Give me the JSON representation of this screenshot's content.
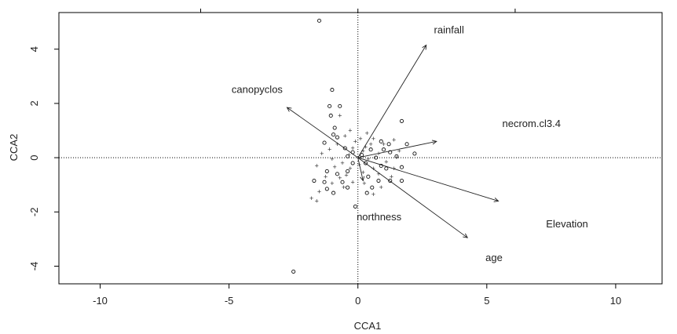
{
  "chart_data": {
    "type": "scatter",
    "xlabel": "CCA1",
    "ylabel": "CCA2",
    "xlim": [
      -11.6,
      11.8
    ],
    "ylim": [
      -4.65,
      5.35
    ],
    "x_ticks": [
      -10,
      -5,
      0,
      5,
      10
    ],
    "x_tick_labels": [
      "-10",
      "-5",
      "0",
      "5",
      "10"
    ],
    "y_ticks": [
      -4,
      -2,
      0,
      2,
      4
    ],
    "y_tick_labels": [
      "-4",
      "-2",
      "0",
      "2",
      "4"
    ],
    "top_axis_ticks_only": [
      -6.1,
      0,
      6.1
    ],
    "grid": false,
    "reference_lines": {
      "x": 0,
      "y": 0,
      "style": "dotted"
    },
    "biplot_arrows": [
      {
        "label": "rainfall",
        "x": 2.65,
        "y": 4.15,
        "label_x": 2.95,
        "label_y": 4.7
      },
      {
        "label": "canopyclos",
        "x": -2.75,
        "y": 1.85,
        "label_x": -4.9,
        "label_y": 2.5
      },
      {
        "label": "necrom.cl3.4",
        "x": 3.05,
        "y": 0.6,
        "label_x": 5.6,
        "label_y": 1.25
      },
      {
        "label": "Elevation",
        "x": 5.45,
        "y": -1.6,
        "label_x": 7.3,
        "label_y": -2.45
      },
      {
        "label": "age",
        "x": 4.25,
        "y": -2.95,
        "label_x": 4.95,
        "label_y": -3.7
      },
      {
        "label": "northness",
        "x": 0.2,
        "y": -0.85,
        "label_x": -0.05,
        "label_y": -2.2
      }
    ],
    "sites": [
      {
        "x": -1.5,
        "y": 5.05
      },
      {
        "x": -2.5,
        "y": -4.2
      },
      {
        "x": 1.7,
        "y": 1.35
      },
      {
        "x": -1.0,
        "y": 2.5
      },
      {
        "x": -1.1,
        "y": 1.9
      },
      {
        "x": -0.7,
        "y": 1.9
      },
      {
        "x": -1.05,
        "y": 1.55
      },
      {
        "x": -0.9,
        "y": 1.1
      },
      {
        "x": -0.95,
        "y": 0.85
      },
      {
        "x": -1.3,
        "y": 0.55
      },
      {
        "x": -0.5,
        "y": 0.35
      },
      {
        "x": -0.2,
        "y": 0.2
      },
      {
        "x": 0.9,
        "y": 0.6
      },
      {
        "x": 1.2,
        "y": 0.5
      },
      {
        "x": 1.9,
        "y": 0.5
      },
      {
        "x": 0.5,
        "y": 0.3
      },
      {
        "x": 1.0,
        "y": 0.3
      },
      {
        "x": 0.7,
        "y": 0.0
      },
      {
        "x": 1.5,
        "y": 0.05
      },
      {
        "x": 0.9,
        "y": -0.3
      },
      {
        "x": 1.1,
        "y": -0.4
      },
      {
        "x": -0.2,
        "y": -0.2
      },
      {
        "x": -0.4,
        "y": -0.5
      },
      {
        "x": -0.8,
        "y": -0.6
      },
      {
        "x": -1.2,
        "y": -0.5
      },
      {
        "x": -1.3,
        "y": -0.9
      },
      {
        "x": -1.7,
        "y": -0.85
      },
      {
        "x": -1.2,
        "y": -1.15
      },
      {
        "x": -0.95,
        "y": -1.3
      },
      {
        "x": -0.4,
        "y": -1.1
      },
      {
        "x": -0.6,
        "y": -0.9
      },
      {
        "x": 0.4,
        "y": -0.7
      },
      {
        "x": 0.55,
        "y": -1.1
      },
      {
        "x": 0.35,
        "y": -1.3
      },
      {
        "x": 0.8,
        "y": -0.85
      },
      {
        "x": 1.25,
        "y": -0.85
      },
      {
        "x": 1.7,
        "y": -0.85
      },
      {
        "x": 1.7,
        "y": -0.35
      },
      {
        "x": -0.1,
        "y": -1.8
      },
      {
        "x": 2.2,
        "y": 0.15
      },
      {
        "x": -0.4,
        "y": 0.05
      },
      {
        "x": 0.15,
        "y": 0.1
      },
      {
        "x": 0.3,
        "y": -0.2
      },
      {
        "x": 1.25,
        "y": 0.2
      },
      {
        "x": -0.8,
        "y": 0.75
      }
    ],
    "species": [
      {
        "x": -0.7,
        "y": 1.55
      },
      {
        "x": -0.3,
        "y": 1.0
      },
      {
        "x": -0.5,
        "y": 0.8
      },
      {
        "x": -0.8,
        "y": 0.5
      },
      {
        "x": -0.1,
        "y": 0.6
      },
      {
        "x": 0.1,
        "y": 0.7
      },
      {
        "x": 0.3,
        "y": 0.4
      },
      {
        "x": 0.6,
        "y": 0.7
      },
      {
        "x": 1.0,
        "y": 0.5
      },
      {
        "x": 1.4,
        "y": 0.65
      },
      {
        "x": 1.6,
        "y": 0.25
      },
      {
        "x": 0.4,
        "y": -0.05
      },
      {
        "x": 0.8,
        "y": 0.15
      },
      {
        "x": 1.1,
        "y": -0.15
      },
      {
        "x": 1.4,
        "y": -0.4
      },
      {
        "x": 0.6,
        "y": -0.4
      },
      {
        "x": 0.2,
        "y": -0.55
      },
      {
        "x": -0.3,
        "y": -0.4
      },
      {
        "x": -0.6,
        "y": -0.2
      },
      {
        "x": -1.0,
        "y": -0.05
      },
      {
        "x": -1.4,
        "y": 0.15
      },
      {
        "x": -1.6,
        "y": -0.3
      },
      {
        "x": -0.9,
        "y": -0.35
      },
      {
        "x": -0.7,
        "y": -0.75
      },
      {
        "x": -1.0,
        "y": -0.95
      },
      {
        "x": -1.5,
        "y": -1.25
      },
      {
        "x": -1.8,
        "y": -1.5
      },
      {
        "x": -1.6,
        "y": -1.6
      },
      {
        "x": -0.55,
        "y": -1.1
      },
      {
        "x": -0.2,
        "y": -0.9
      },
      {
        "x": 0.25,
        "y": -0.95
      },
      {
        "x": 0.6,
        "y": -1.35
      },
      {
        "x": 0.9,
        "y": -1.1
      },
      {
        "x": 1.3,
        "y": -0.7
      },
      {
        "x": 0.2,
        "y": 0.25
      },
      {
        "x": -0.2,
        "y": 0.35
      },
      {
        "x": 0.5,
        "y": 0.5
      },
      {
        "x": -0.35,
        "y": 0.1
      },
      {
        "x": 0.05,
        "y": -0.25
      },
      {
        "x": 0.8,
        "y": -0.6
      },
      {
        "x": 1.5,
        "y": 0.0
      },
      {
        "x": -1.1,
        "y": 0.3
      },
      {
        "x": -0.45,
        "y": -0.65
      },
      {
        "x": 0.35,
        "y": 0.9
      },
      {
        "x": -1.25,
        "y": -0.7
      }
    ]
  }
}
